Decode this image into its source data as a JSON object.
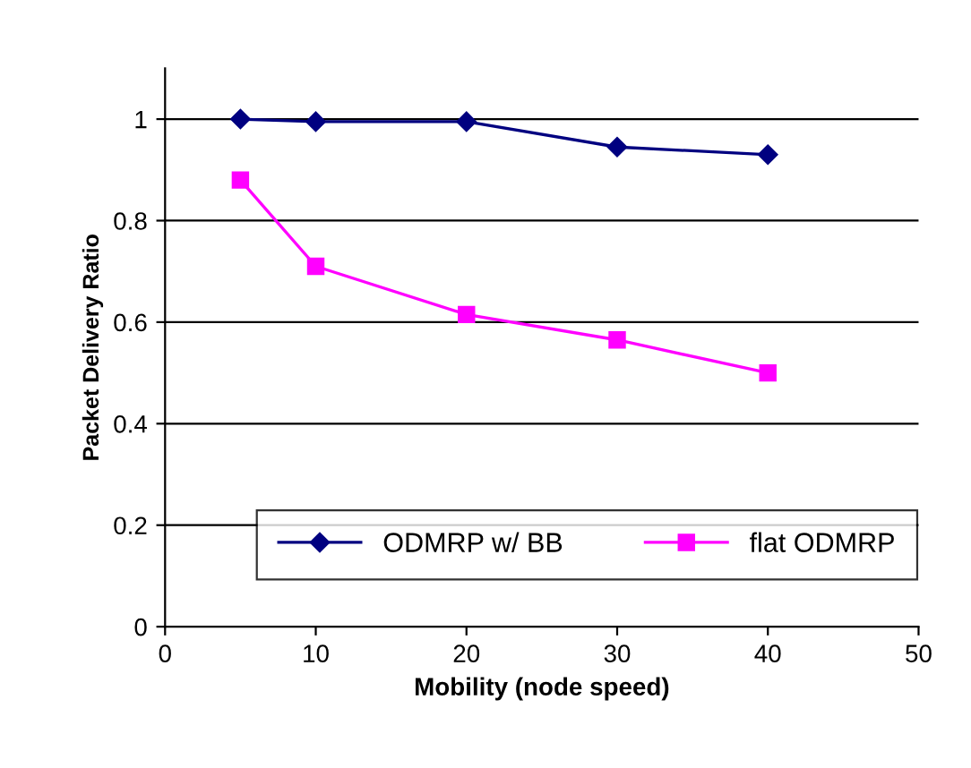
{
  "chart_data": {
    "type": "line",
    "xlabel": "Mobility (node speed)",
    "ylabel": "Packet Delivery Ratio",
    "x": [
      5,
      10,
      20,
      30,
      40
    ],
    "series": [
      {
        "name": "ODMRP w/ BB",
        "color": "#000080",
        "marker": "diamond",
        "values": [
          1.0,
          0.995,
          0.995,
          0.945,
          0.93
        ]
      },
      {
        "name": "flat ODMRP",
        "color": "#ff00ff",
        "marker": "square",
        "values": [
          0.88,
          0.71,
          0.615,
          0.565,
          0.5
        ]
      }
    ],
    "xlim": [
      0,
      50
    ],
    "xticks": [
      0,
      10,
      20,
      30,
      40,
      50
    ],
    "ylim": [
      0,
      1.1
    ],
    "yticks": [
      0,
      0.2,
      0.4,
      0.6,
      0.8,
      1
    ],
    "grid": "y",
    "legend": "bottom"
  }
}
